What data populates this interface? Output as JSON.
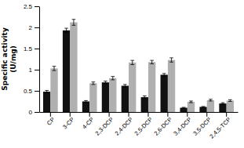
{
  "chart_data": {
    "type": "bar",
    "categories": [
      "CP",
      "3-CP",
      "4-CP",
      "2,3-DCP",
      "2,4-DCP",
      "2,5-DCP",
      "2,6-DCP",
      "3,4-DCP",
      "3,5-DCP",
      "2,4,5-TCP"
    ],
    "series": [
      {
        "color": "#111111",
        "values": [
          0.48,
          1.93,
          0.25,
          0.7,
          0.62,
          0.35,
          0.88,
          0.1,
          0.12,
          0.2
        ],
        "errors": [
          0.03,
          0.05,
          0.02,
          0.03,
          0.03,
          0.03,
          0.03,
          0.01,
          0.01,
          0.02
        ]
      },
      {
        "color": "#b0b0b0",
        "values": [
          1.03,
          2.12,
          0.68,
          0.8,
          1.17,
          1.18,
          1.23,
          0.24,
          0.28,
          0.27
        ],
        "errors": [
          0.05,
          0.07,
          0.03,
          0.04,
          0.05,
          0.04,
          0.05,
          0.02,
          0.02,
          0.02
        ]
      }
    ],
    "ylabel": "Specific activity\n(U/mg)",
    "ylim": [
      0,
      2.5
    ],
    "yticks": [
      0,
      0.5,
      1,
      1.5,
      2,
      2.5
    ]
  }
}
